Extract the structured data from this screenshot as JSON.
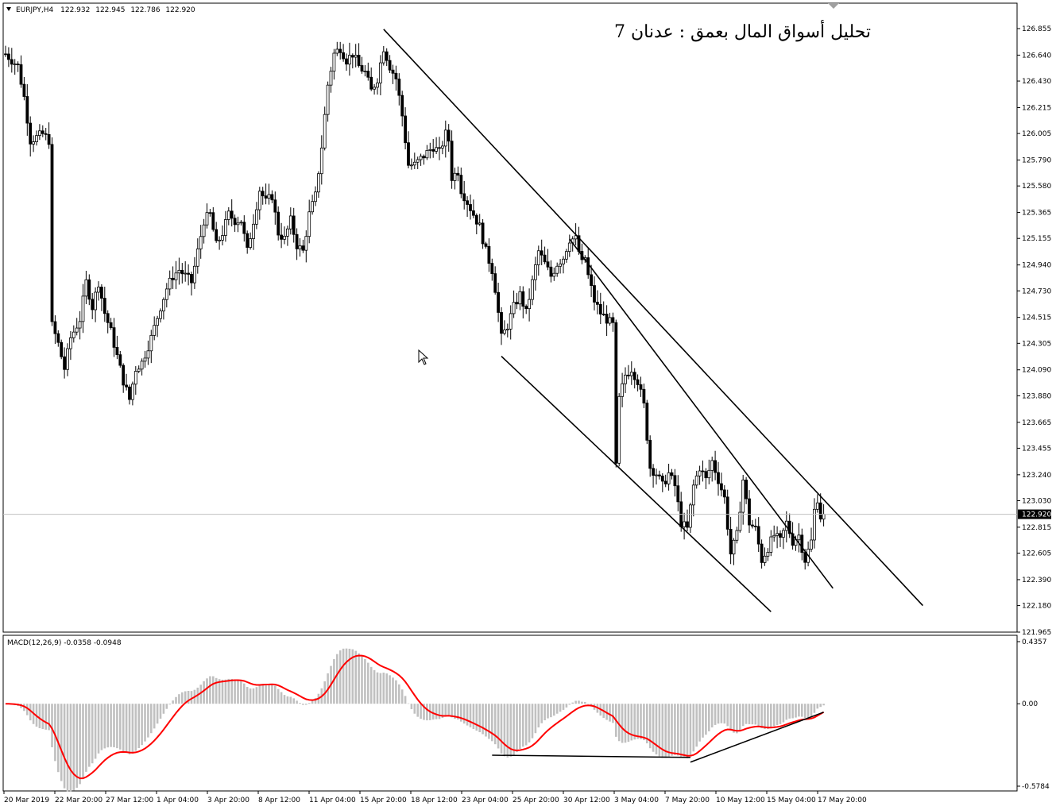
{
  "header": {
    "symbol": "EURJPY,H4",
    "open": "122.932",
    "high": "122.945",
    "low": "122.786",
    "close": "122.920"
  },
  "annotation": "تحليل أسواق المال بعمق : عدنان 7",
  "price_axis": {
    "ticks": [
      "126.855",
      "126.640",
      "126.430",
      "126.215",
      "126.005",
      "125.790",
      "125.580",
      "125.365",
      "125.155",
      "124.940",
      "124.730",
      "124.515",
      "124.305",
      "124.090",
      "123.880",
      "123.665",
      "123.455",
      "123.240",
      "123.030",
      "122.815",
      "122.605",
      "122.390",
      "122.180",
      "121.965"
    ],
    "current_price_label": "122.920",
    "current_price": 122.92
  },
  "macd_panel": {
    "label": "MACD(12,26,9) -0.0358 -0.0948",
    "ticks": [
      "0.4357",
      "0.00",
      "-0.5784"
    ]
  },
  "time_axis": [
    "20 Mar 2019",
    "22 Mar 20:00",
    "27 Mar 12:00",
    "1 Apr 04:00",
    "3 Apr 20:00",
    "8 Apr 12:00",
    "11 Apr 04:00",
    "15 Apr 20:00",
    "18 Apr 12:00",
    "23 Apr 04:00",
    "25 Apr 20:00",
    "30 Apr 12:00",
    "3 May 04:00",
    "7 May 20:00",
    "10 May 12:00",
    "15 May 04:00",
    "17 May 20:00"
  ],
  "colors": {
    "candles": "#000000",
    "histogram": "#c0c0c0",
    "signal": "#ff0000",
    "trendline": "#000000",
    "current_price_line": "#c0c0c0"
  },
  "chart_data": {
    "type": "candlestick",
    "instrument": "EURJPY",
    "timeframe": "H4",
    "price_range": [
      121.965,
      126.855
    ],
    "anchors": [
      {
        "bar": 0,
        "price": 126.65
      },
      {
        "bar": 4,
        "price": 126.55
      },
      {
        "bar": 6,
        "price": 126.3
      },
      {
        "bar": 8,
        "price": 125.95
      },
      {
        "bar": 12,
        "price": 126.0
      },
      {
        "bar": 14,
        "price": 125.95
      },
      {
        "bar": 15,
        "price": 124.45
      },
      {
        "bar": 17,
        "price": 124.3
      },
      {
        "bar": 19,
        "price": 124.1
      },
      {
        "bar": 21,
        "price": 124.35
      },
      {
        "bar": 24,
        "price": 124.5
      },
      {
        "bar": 26,
        "price": 124.8
      },
      {
        "bar": 28,
        "price": 124.6
      },
      {
        "bar": 30,
        "price": 124.8
      },
      {
        "bar": 32,
        "price": 124.55
      },
      {
        "bar": 34,
        "price": 124.4
      },
      {
        "bar": 36,
        "price": 124.2
      },
      {
        "bar": 38,
        "price": 124.0
      },
      {
        "bar": 40,
        "price": 123.85
      },
      {
        "bar": 42,
        "price": 124.1
      },
      {
        "bar": 44,
        "price": 124.15
      },
      {
        "bar": 47,
        "price": 124.35
      },
      {
        "bar": 50,
        "price": 124.6
      },
      {
        "bar": 52,
        "price": 124.75
      },
      {
        "bar": 54,
        "price": 124.85
      },
      {
        "bar": 56,
        "price": 124.9
      },
      {
        "bar": 58,
        "price": 124.85
      },
      {
        "bar": 60,
        "price": 124.8
      },
      {
        "bar": 62,
        "price": 125.05
      },
      {
        "bar": 64,
        "price": 125.3
      },
      {
        "bar": 66,
        "price": 125.35
      },
      {
        "bar": 68,
        "price": 125.1
      },
      {
        "bar": 70,
        "price": 125.2
      },
      {
        "bar": 72,
        "price": 125.35
      },
      {
        "bar": 74,
        "price": 125.3
      },
      {
        "bar": 76,
        "price": 125.3
      },
      {
        "bar": 78,
        "price": 125.05
      },
      {
        "bar": 80,
        "price": 125.3
      },
      {
        "bar": 82,
        "price": 125.55
      },
      {
        "bar": 84,
        "price": 125.45
      },
      {
        "bar": 86,
        "price": 125.5
      },
      {
        "bar": 88,
        "price": 125.2
      },
      {
        "bar": 90,
        "price": 125.15
      },
      {
        "bar": 92,
        "price": 125.3
      },
      {
        "bar": 94,
        "price": 125.1
      },
      {
        "bar": 96,
        "price": 125.05
      },
      {
        "bar": 98,
        "price": 125.35
      },
      {
        "bar": 100,
        "price": 125.5
      },
      {
        "bar": 102,
        "price": 125.9
      },
      {
        "bar": 104,
        "price": 126.4
      },
      {
        "bar": 106,
        "price": 126.65
      },
      {
        "bar": 108,
        "price": 126.7
      },
      {
        "bar": 110,
        "price": 126.6
      },
      {
        "bar": 112,
        "price": 126.65
      },
      {
        "bar": 114,
        "price": 126.55
      },
      {
        "bar": 116,
        "price": 126.5
      },
      {
        "bar": 118,
        "price": 126.35
      },
      {
        "bar": 120,
        "price": 126.45
      },
      {
        "bar": 122,
        "price": 126.7
      },
      {
        "bar": 124,
        "price": 126.55
      },
      {
        "bar": 126,
        "price": 126.45
      },
      {
        "bar": 128,
        "price": 126.15
      },
      {
        "bar": 129,
        "price": 125.95
      },
      {
        "bar": 130,
        "price": 125.75
      },
      {
        "bar": 132,
        "price": 125.75
      },
      {
        "bar": 134,
        "price": 125.8
      },
      {
        "bar": 136,
        "price": 125.85
      },
      {
        "bar": 138,
        "price": 125.9
      },
      {
        "bar": 140,
        "price": 125.85
      },
      {
        "bar": 142,
        "price": 126.0
      },
      {
        "bar": 143,
        "price": 125.95
      },
      {
        "bar": 144,
        "price": 125.65
      },
      {
        "bar": 146,
        "price": 125.7
      },
      {
        "bar": 147,
        "price": 125.55
      },
      {
        "bar": 149,
        "price": 125.45
      },
      {
        "bar": 151,
        "price": 125.35
      },
      {
        "bar": 153,
        "price": 125.25
      },
      {
        "bar": 155,
        "price": 125.05
      },
      {
        "bar": 157,
        "price": 124.9
      },
      {
        "bar": 158,
        "price": 124.75
      },
      {
        "bar": 159,
        "price": 124.55
      },
      {
        "bar": 160,
        "price": 124.35
      },
      {
        "bar": 162,
        "price": 124.45
      },
      {
        "bar": 164,
        "price": 124.6
      },
      {
        "bar": 166,
        "price": 124.7
      },
      {
        "bar": 168,
        "price": 124.55
      },
      {
        "bar": 170,
        "price": 124.8
      },
      {
        "bar": 172,
        "price": 125.05
      },
      {
        "bar": 174,
        "price": 124.95
      },
      {
        "bar": 176,
        "price": 124.85
      },
      {
        "bar": 178,
        "price": 124.95
      },
      {
        "bar": 180,
        "price": 125.0
      },
      {
        "bar": 182,
        "price": 125.15
      },
      {
        "bar": 184,
        "price": 125.15
      },
      {
        "bar": 186,
        "price": 124.95
      },
      {
        "bar": 187,
        "price": 125.0
      },
      {
        "bar": 188,
        "price": 124.85
      },
      {
        "bar": 190,
        "price": 124.65
      },
      {
        "bar": 192,
        "price": 124.55
      },
      {
        "bar": 194,
        "price": 124.5
      },
      {
        "bar": 196,
        "price": 124.45
      },
      {
        "bar": 197,
        "price": 123.3
      },
      {
        "bar": 198,
        "price": 123.85
      },
      {
        "bar": 200,
        "price": 124.05
      },
      {
        "bar": 202,
        "price": 124.1
      },
      {
        "bar": 204,
        "price": 124.0
      },
      {
        "bar": 206,
        "price": 123.8
      },
      {
        "bar": 208,
        "price": 123.3
      },
      {
        "bar": 210,
        "price": 123.25
      },
      {
        "bar": 212,
        "price": 123.15
      },
      {
        "bar": 214,
        "price": 123.25
      },
      {
        "bar": 216,
        "price": 123.15
      },
      {
        "bar": 218,
        "price": 122.85
      },
      {
        "bar": 220,
        "price": 122.8
      },
      {
        "bar": 222,
        "price": 123.15
      },
      {
        "bar": 224,
        "price": 123.3
      },
      {
        "bar": 226,
        "price": 123.2
      },
      {
        "bar": 228,
        "price": 123.35
      },
      {
        "bar": 230,
        "price": 123.2
      },
      {
        "bar": 232,
        "price": 123.05
      },
      {
        "bar": 234,
        "price": 122.6
      },
      {
        "bar": 236,
        "price": 122.75
      },
      {
        "bar": 238,
        "price": 123.2
      },
      {
        "bar": 240,
        "price": 122.85
      },
      {
        "bar": 242,
        "price": 122.8
      },
      {
        "bar": 244,
        "price": 122.55
      },
      {
        "bar": 246,
        "price": 122.65
      },
      {
        "bar": 248,
        "price": 122.75
      },
      {
        "bar": 250,
        "price": 122.7
      },
      {
        "bar": 252,
        "price": 122.85
      },
      {
        "bar": 254,
        "price": 122.7
      },
      {
        "bar": 256,
        "price": 122.75
      },
      {
        "bar": 258,
        "price": 122.55
      },
      {
        "bar": 260,
        "price": 122.7
      },
      {
        "bar": 261,
        "price": 122.95
      },
      {
        "bar": 262,
        "price": 123.05
      },
      {
        "bar": 263,
        "price": 122.9
      },
      {
        "bar": 264,
        "price": 122.92
      }
    ],
    "trendlines": [
      {
        "from": {
          "bar": 122,
          "price": 126.85
        },
        "to": {
          "bar": 296,
          "price": 122.18
        }
      },
      {
        "from": {
          "bar": 160,
          "price": 124.2
        },
        "to": {
          "bar": 247,
          "price": 122.13
        }
      },
      {
        "from": {
          "bar": 182,
          "price": 125.15
        },
        "to": {
          "bar": 267,
          "price": 122.32
        }
      }
    ],
    "macd": {
      "params": "12,26,9",
      "main": -0.0358,
      "signal": -0.0948,
      "range": [
        -0.5784,
        0.4357
      ]
    }
  }
}
